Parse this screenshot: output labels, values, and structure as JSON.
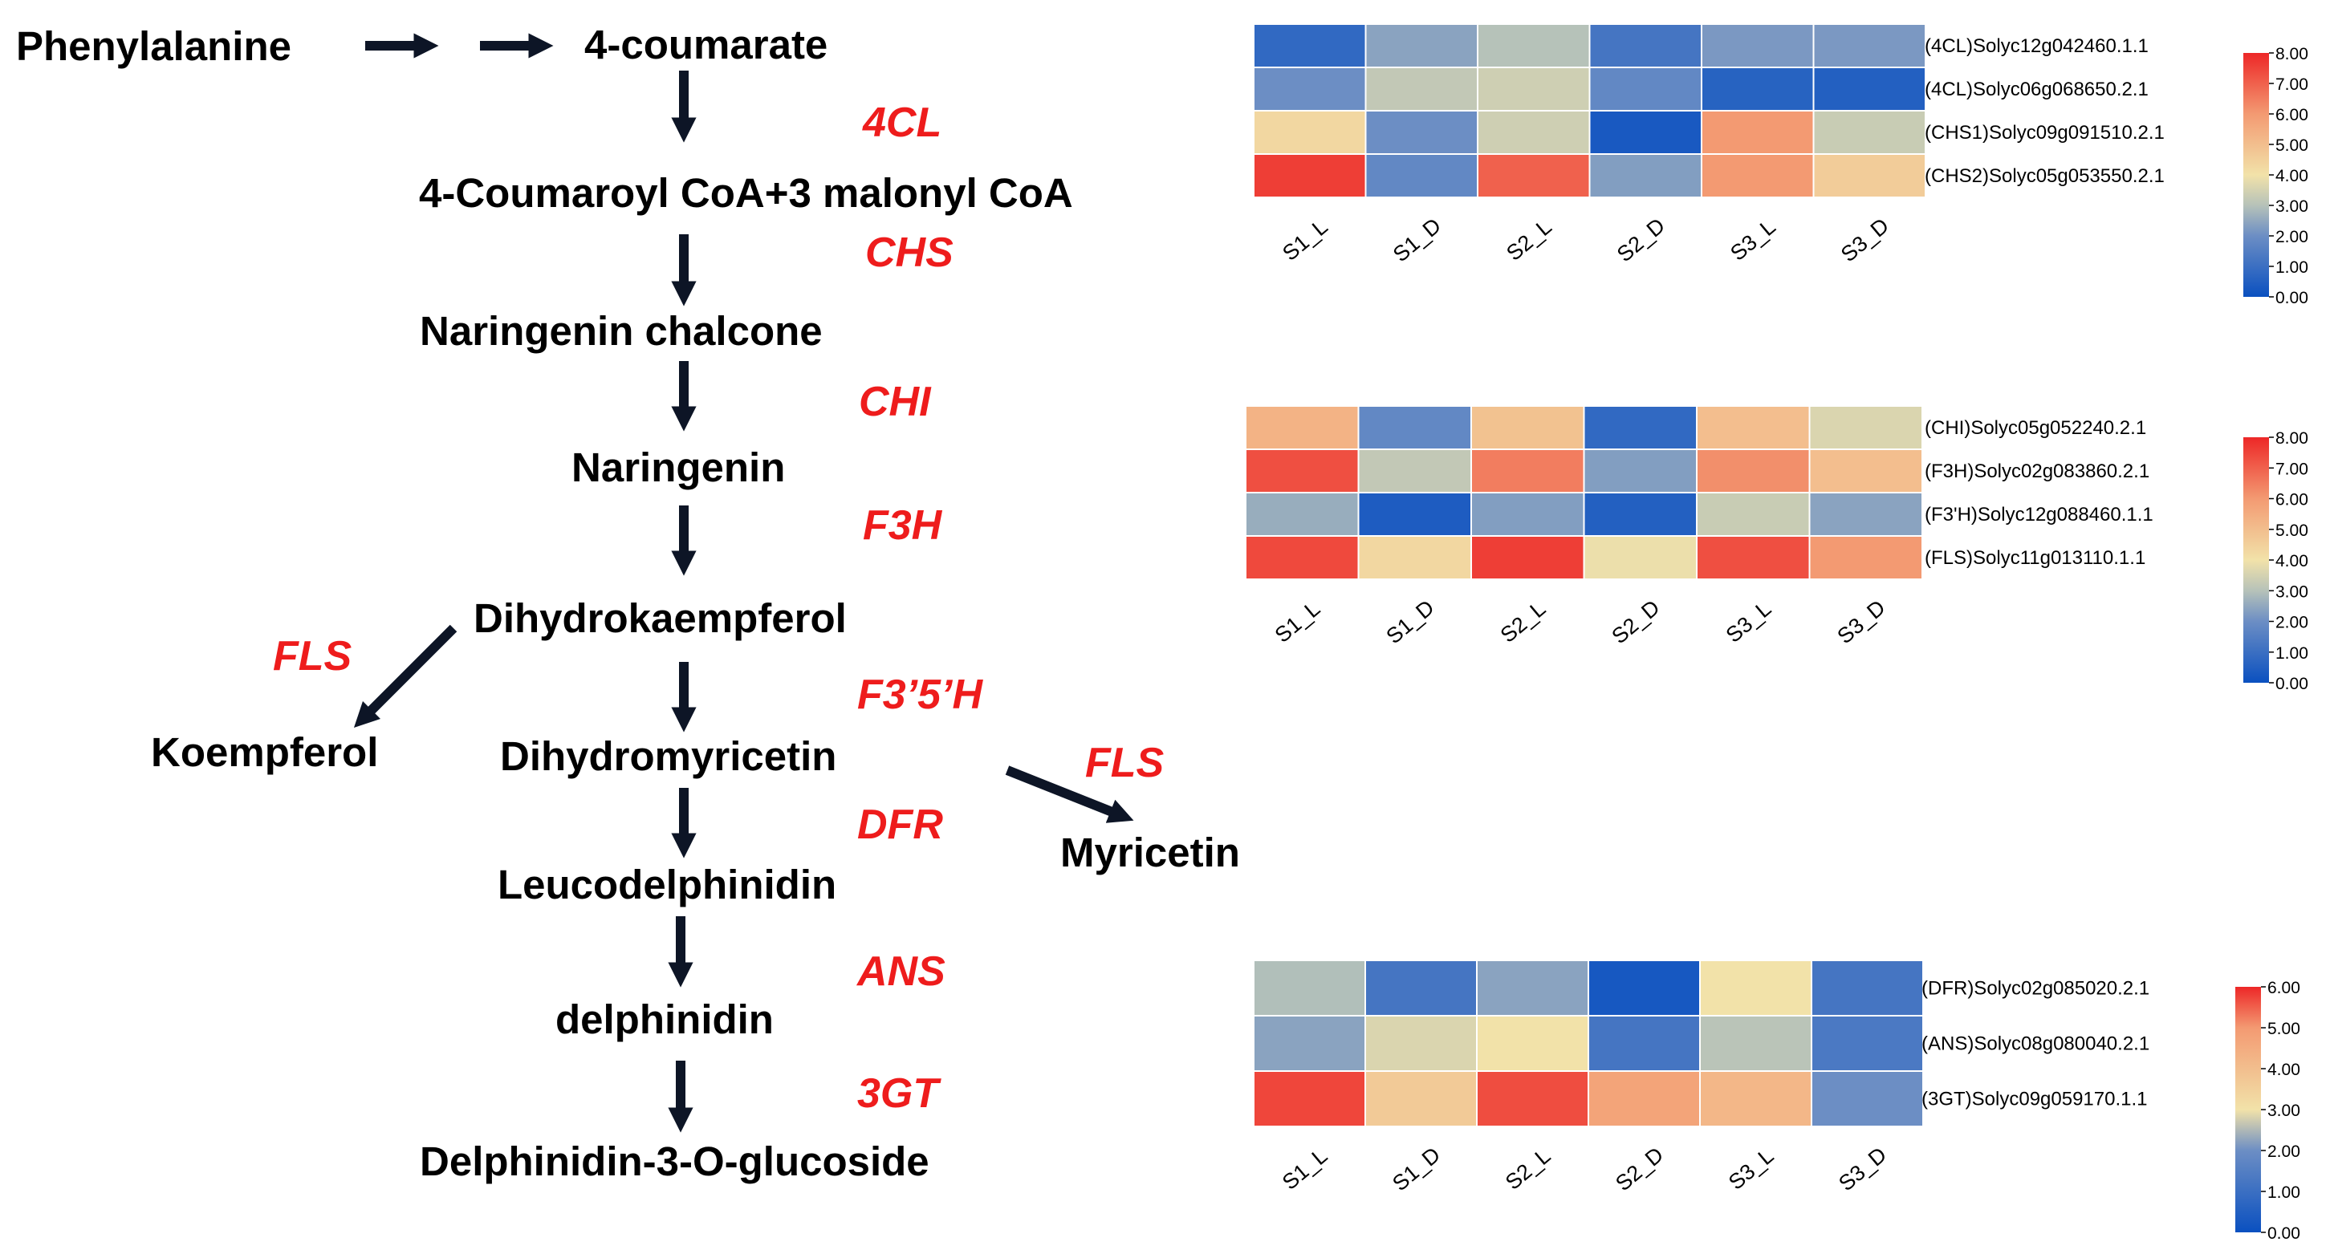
{
  "pathway": {
    "compounds": {
      "phenylalanine": "Phenylalanine",
      "coumarate": "4-coumarate",
      "coumaroyl": "4-Coumaroyl CoA+3 malonyl CoA",
      "chalcone": "Naringenin chalcone",
      "naringenin": "Naringenin",
      "dihydrokaempferol": "Dihydrokaempferol",
      "koempferol": "Koempferol",
      "dihydromyricetin": "Dihydromyricetin",
      "myricetin": "Myricetin",
      "leucodelphinidin": "Leucodelphinidin",
      "delphinidin": "delphinidin",
      "glucoside": "Delphinidin-3-O-glucoside"
    },
    "enzymes": {
      "4cl": "4CL",
      "chs": "CHS",
      "chi": "CHI",
      "f3h": "F3H",
      "fls_left": "FLS",
      "f35h": "F3’5’H",
      "fls_right": "FLS",
      "dfr": "DFR",
      "ans": "ANS",
      "3gt": "3GT"
    },
    "colors": {
      "text": "#000000",
      "enzyme": "#ee1c1c",
      "arrow": "#0d1526"
    }
  },
  "chart_data": [
    {
      "type": "heatmap",
      "title": "",
      "columns": [
        "S1_L",
        "S1_D",
        "S2_L",
        "S2_D",
        "S3_L",
        "S3_D"
      ],
      "rows": [
        "(4CL)Solyc12g042460.1.1",
        "(4CL)Solyc06g068650.2.1",
        "(CHS1)Solyc09g091510.2.1",
        "(CHS2)Solyc05g053550.2.1"
      ],
      "values": [
        [
          0.8,
          2.4,
          3.0,
          1.2,
          2.2,
          2.2
        ],
        [
          2.0,
          3.2,
          3.4,
          1.8,
          0.6,
          0.5
        ],
        [
          4.3,
          2.0,
          3.4,
          0.3,
          6.0,
          3.3
        ],
        [
          7.6,
          1.8,
          7.0,
          2.3,
          6.0,
          4.6
        ]
      ],
      "scale": {
        "min": 0,
        "max": 8,
        "ticks": [
          "0.00",
          "1.00",
          "2.00",
          "3.00",
          "4.00",
          "5.00",
          "6.00",
          "7.00",
          "8.00"
        ]
      }
    },
    {
      "type": "heatmap",
      "title": "",
      "columns": [
        "S1_L",
        "S1_D",
        "S2_L",
        "S2_D",
        "S3_L",
        "S3_D"
      ],
      "rows": [
        "(CHI)Solyc05g052240.2.1",
        "(F3H)Solyc02g083860.2.1",
        "(F3'H)Solyc12g088460.1.1",
        "(FLS)Solyc11g013110.1.1"
      ],
      "values": [
        [
          5.3,
          1.8,
          4.9,
          0.8,
          5.0,
          3.6
        ],
        [
          7.3,
          3.2,
          6.5,
          2.3,
          6.2,
          5.0
        ],
        [
          2.6,
          0.4,
          2.3,
          0.5,
          3.3,
          2.4
        ],
        [
          7.4,
          4.3,
          7.6,
          3.9,
          7.3,
          6.0
        ]
      ],
      "scale": {
        "min": 0,
        "max": 8,
        "ticks": [
          "0.00",
          "1.00",
          "2.00",
          "3.00",
          "4.00",
          "5.00",
          "6.00",
          "7.00",
          "8.00"
        ]
      }
    },
    {
      "type": "heatmap",
      "title": "",
      "columns": [
        "S1_L",
        "S1_D",
        "S2_L",
        "S2_D",
        "S3_L",
        "S3_D"
      ],
      "rows": [
        "(DFR)Solyc02g085020.2.1",
        "(ANS)Solyc08g080040.2.1",
        "(3GT)Solyc09g059170.1.1"
      ],
      "values": [
        [
          2.2,
          0.9,
          1.8,
          0.2,
          3.0,
          0.9
        ],
        [
          1.8,
          2.7,
          3.0,
          0.9,
          2.3,
          1.0
        ],
        [
          5.6,
          3.5,
          5.5,
          4.3,
          3.9,
          1.5
        ]
      ],
      "scale": {
        "min": 0,
        "max": 6,
        "ticks": [
          "0.00",
          "1.00",
          "2.00",
          "3.00",
          "4.00",
          "5.00",
          "6.00"
        ]
      }
    }
  ]
}
